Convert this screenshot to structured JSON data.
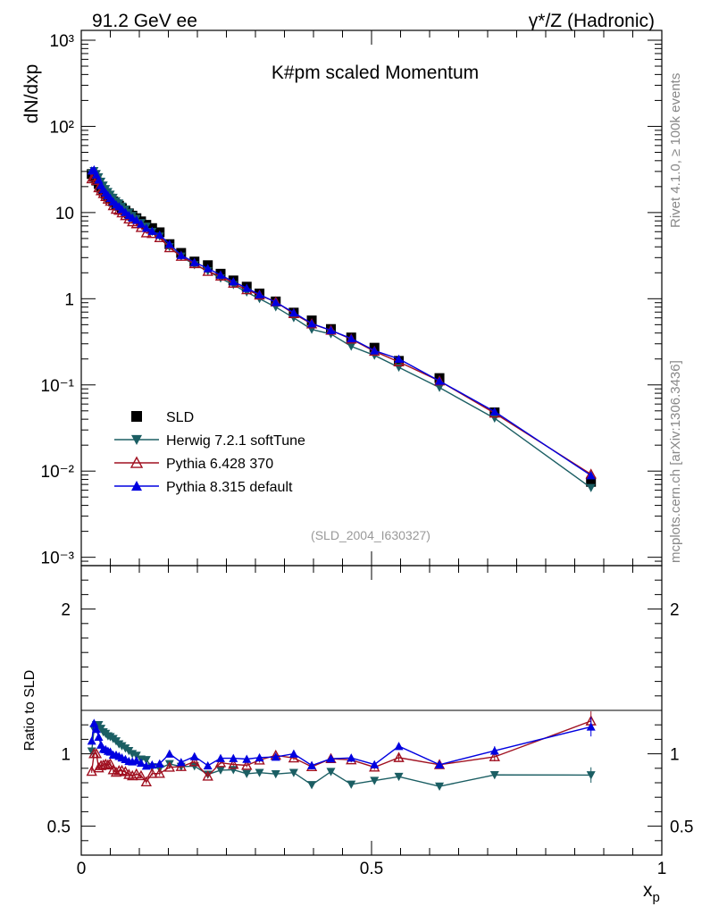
{
  "header": {
    "left": "91.2 GeV ee",
    "right": "γ*/Z (Hadronic)"
  },
  "side_text": {
    "rivet": "Rivet 4.1.0, ≥ 100k events",
    "mcplots": "mcplots.cern.ch [arXiv:1306.3436]"
  },
  "chart_data": {
    "type": "line",
    "title": "K#pm scaled Momentum",
    "xlabel": "xp",
    "ylabel": "dN/dxp",
    "ratio_ylabel": "Ratio to SLD",
    "analysis_id": "(SLD_2004_I630327)",
    "xlim": [
      0,
      1
    ],
    "ylim": [
      0.0008,
      1300
    ],
    "ylog": true,
    "ratio_ylim": [
      0.3,
      2.3
    ],
    "x_ticks": [
      0,
      0.5,
      1
    ],
    "x_tick_labels": [
      "0",
      "0.5",
      "1"
    ],
    "y_tick_labels": [
      "10⁻³",
      "10⁻²",
      "10⁻¹",
      "1",
      "10",
      "10²",
      "10³"
    ],
    "ratio_tick_labels": [
      "0.5",
      "1",
      "2"
    ],
    "legend": [
      {
        "name": "SLD",
        "marker": "square",
        "color": "#000000"
      },
      {
        "name": "Herwig 7.2.1 softTune",
        "marker": "tri-down",
        "color": "#1b5e63"
      },
      {
        "name": "Pythia 6.428 370",
        "marker": "tri-up-open",
        "color": "#a01020"
      },
      {
        "name": "Pythia 8.315 default",
        "marker": "tri-up",
        "color": "#0000e0"
      }
    ],
    "x": [
      0.018,
      0.022,
      0.026,
      0.03,
      0.034,
      0.038,
      0.042,
      0.046,
      0.05,
      0.055,
      0.06,
      0.065,
      0.07,
      0.076,
      0.082,
      0.088,
      0.095,
      0.103,
      0.112,
      0.122,
      0.135,
      0.152,
      0.172,
      0.195,
      0.218,
      0.24,
      0.262,
      0.285,
      0.307,
      0.335,
      0.366,
      0.397,
      0.43,
      0.465,
      0.505,
      0.547,
      0.617,
      0.712,
      0.878
    ],
    "series": [
      {
        "name": "SLD",
        "values": [
          28.0,
          26.0,
          23.5,
          21.5,
          19.5,
          18.0,
          16.5,
          15.5,
          14.5,
          13.5,
          12.5,
          12.0,
          11.2,
          10.5,
          9.8,
          9.2,
          8.6,
          7.9,
          7.2,
          6.6,
          5.9,
          4.3,
          3.4,
          2.7,
          2.45,
          1.95,
          1.63,
          1.38,
          1.15,
          0.93,
          0.69,
          0.56,
          0.445,
          0.355,
          0.27,
          0.19,
          0.12,
          0.048,
          0.0075
        ],
        "errors": [
          1.2,
          1.1,
          1.0,
          0.9,
          0.8,
          0.7,
          0.6,
          0.6,
          0.5,
          0.5,
          0.4,
          0.4,
          0.4,
          0.4,
          0.3,
          0.3,
          0.3,
          0.3,
          0.3,
          0.2,
          0.2,
          0.2,
          0.1,
          0.1,
          0.1,
          0.08,
          0.07,
          0.06,
          0.05,
          0.04,
          0.03,
          0.025,
          0.02,
          0.016,
          0.012,
          0.009,
          0.006,
          0.003,
          0.0006
        ]
      },
      {
        "name": "Herwig 7.2.1 softTune",
        "values": [
          28.5,
          30.4,
          28.2,
          25.8,
          22.9,
          20.7,
          18.8,
          17.4,
          16.2,
          14.9,
          13.6,
          12.8,
          11.8,
          10.9,
          10.0,
          9.2,
          8.5,
          7.6,
          6.9,
          6.0,
          5.3,
          4.0,
          3.1,
          2.47,
          2.1,
          1.73,
          1.45,
          1.19,
          1.0,
          0.8,
          0.6,
          0.44,
          0.39,
          0.28,
          0.22,
          0.16,
          0.093,
          0.041,
          0.0064
        ],
        "errors": [
          0.3,
          0.3,
          0.3,
          0.3,
          0.2,
          0.2,
          0.2,
          0.2,
          0.2,
          0.2,
          0.1,
          0.1,
          0.1,
          0.1,
          0.1,
          0.1,
          0.1,
          0.1,
          0.1,
          0.1,
          0.1,
          0.05,
          0.04,
          0.03,
          0.03,
          0.02,
          0.02,
          0.02,
          0.02,
          0.01,
          0.01,
          0.01,
          0.01,
          0.006,
          0.004,
          0.003,
          0.002,
          0.0012,
          0.0004
        ]
      },
      {
        "name": "Pythia 6.428 370",
        "values": [
          24.6,
          26.0,
          23.5,
          19.4,
          17.9,
          16.6,
          15.3,
          14.3,
          13.5,
          12.0,
          10.9,
          10.6,
          9.9,
          9.2,
          8.4,
          7.8,
          7.4,
          6.7,
          5.8,
          5.7,
          5.1,
          3.9,
          3.1,
          2.55,
          2.07,
          1.83,
          1.51,
          1.27,
          1.1,
          0.92,
          0.67,
          0.51,
          0.43,
          0.34,
          0.245,
          0.185,
          0.111,
          0.047,
          0.0092
        ],
        "errors": [
          0.3,
          0.3,
          0.3,
          0.2,
          0.2,
          0.2,
          0.2,
          0.2,
          0.2,
          0.2,
          0.1,
          0.1,
          0.1,
          0.1,
          0.1,
          0.1,
          0.1,
          0.1,
          0.1,
          0.1,
          0.1,
          0.05,
          0.04,
          0.03,
          0.03,
          0.02,
          0.02,
          0.02,
          0.02,
          0.01,
          0.01,
          0.01,
          0.01,
          0.006,
          0.005,
          0.004,
          0.003,
          0.0015,
          0.0005
        ]
      },
      {
        "name": "Pythia 8.315 default",
        "values": [
          30.5,
          31.5,
          27.5,
          24.0,
          20.7,
          18.6,
          17.0,
          15.8,
          14.7,
          13.4,
          12.4,
          11.8,
          10.9,
          10.1,
          9.3,
          8.7,
          8.2,
          7.4,
          6.6,
          6.1,
          5.5,
          4.3,
          3.2,
          2.65,
          2.25,
          1.89,
          1.58,
          1.33,
          1.12,
          0.91,
          0.69,
          0.515,
          0.43,
          0.345,
          0.25,
          0.2,
          0.111,
          0.049,
          0.0089
        ],
        "errors": [
          0.3,
          0.3,
          0.3,
          0.2,
          0.2,
          0.2,
          0.2,
          0.2,
          0.2,
          0.2,
          0.1,
          0.1,
          0.1,
          0.1,
          0.1,
          0.1,
          0.1,
          0.1,
          0.1,
          0.1,
          0.1,
          0.05,
          0.04,
          0.03,
          0.03,
          0.02,
          0.02,
          0.02,
          0.02,
          0.01,
          0.01,
          0.01,
          0.01,
          0.006,
          0.005,
          0.004,
          0.003,
          0.0015,
          0.0005
        ]
      }
    ]
  }
}
